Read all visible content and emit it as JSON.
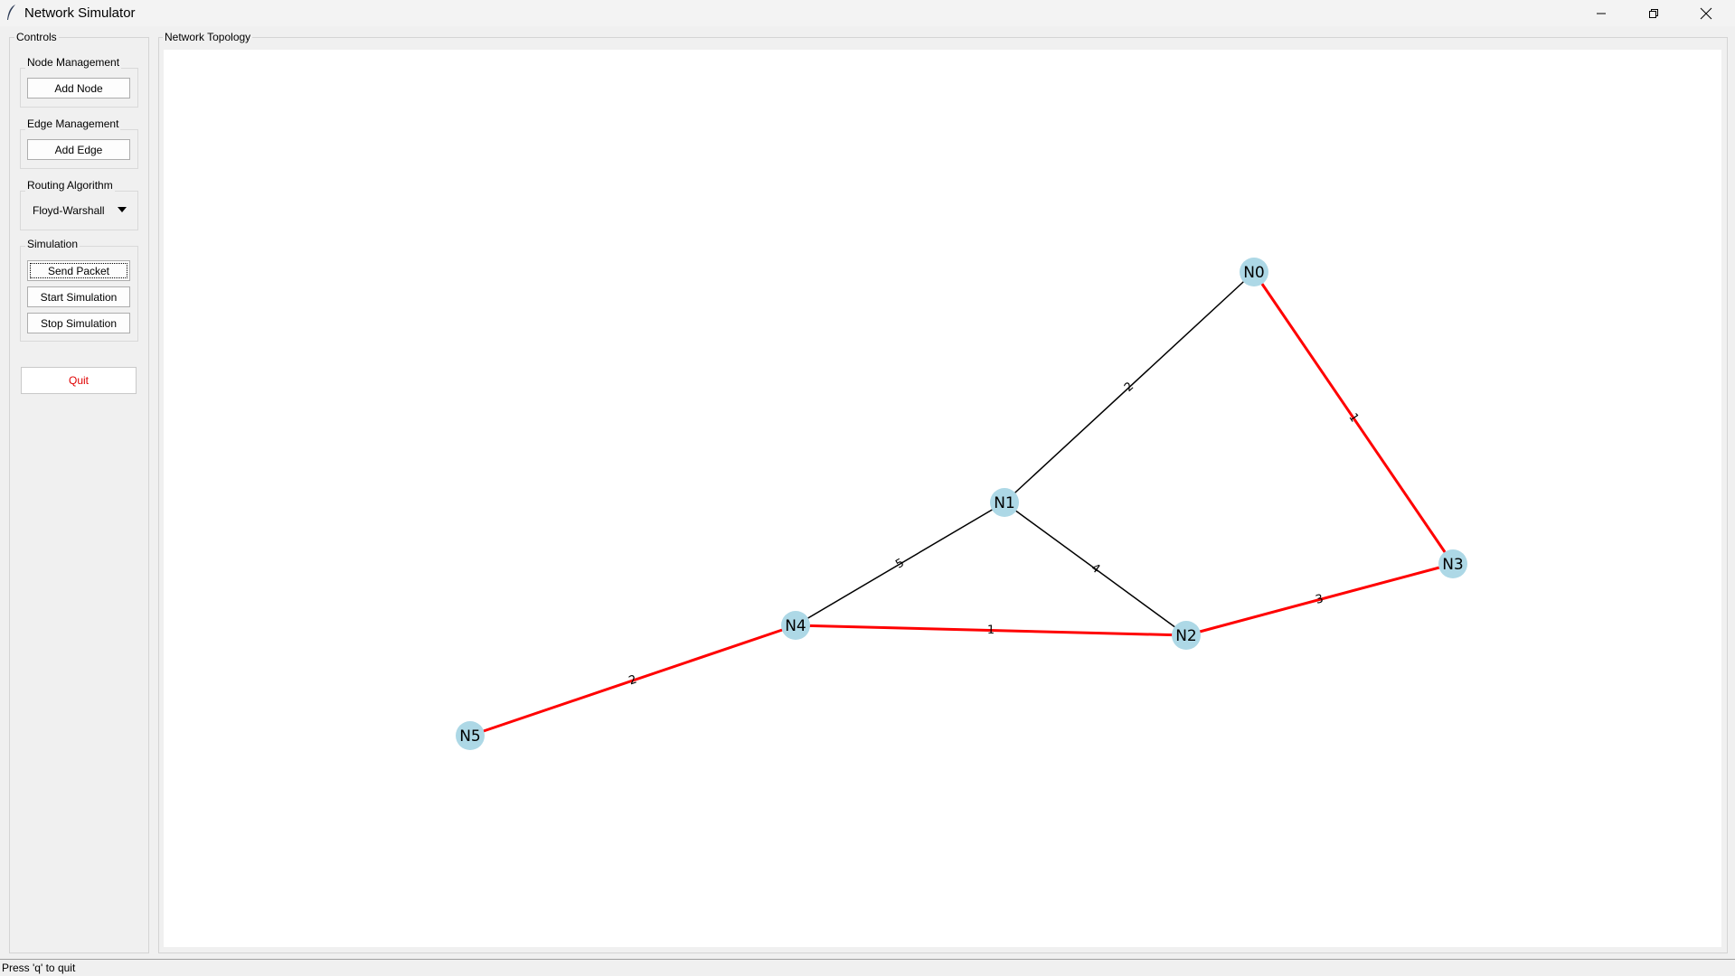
{
  "window": {
    "title": "Network Simulator"
  },
  "controls": {
    "caption": "Controls",
    "node_management": {
      "caption": "Node Management",
      "add_node_label": "Add Node"
    },
    "edge_management": {
      "caption": "Edge Management",
      "add_edge_label": "Add Edge"
    },
    "routing": {
      "caption": "Routing Algorithm",
      "selected": "Floyd-Warshall"
    },
    "simulation": {
      "caption": "Simulation",
      "send_packet_label": "Send Packet",
      "start_label": "Start Simulation",
      "stop_label": "Stop Simulation"
    },
    "quit_label": "Quit"
  },
  "topology": {
    "caption": "Network Topology",
    "nodes": [
      "N0",
      "N1",
      "N2",
      "N3",
      "N4",
      "N5"
    ],
    "edges": [
      {
        "from": "N0",
        "to": "N1",
        "weight": "2",
        "highlighted": false
      },
      {
        "from": "N0",
        "to": "N3",
        "weight": "1",
        "highlighted": true
      },
      {
        "from": "N1",
        "to": "N4",
        "weight": "5",
        "highlighted": false
      },
      {
        "from": "N1",
        "to": "N2",
        "weight": "4",
        "highlighted": false
      },
      {
        "from": "N2",
        "to": "N3",
        "weight": "3",
        "highlighted": true
      },
      {
        "from": "N4",
        "to": "N2",
        "weight": "1",
        "highlighted": true
      },
      {
        "from": "N5",
        "to": "N4",
        "weight": "2",
        "highlighted": true
      }
    ],
    "colors": {
      "node": "#add8e6",
      "edge": "#000000",
      "path": "#ff0000"
    }
  },
  "status": {
    "text": "Press 'q' to quit"
  }
}
